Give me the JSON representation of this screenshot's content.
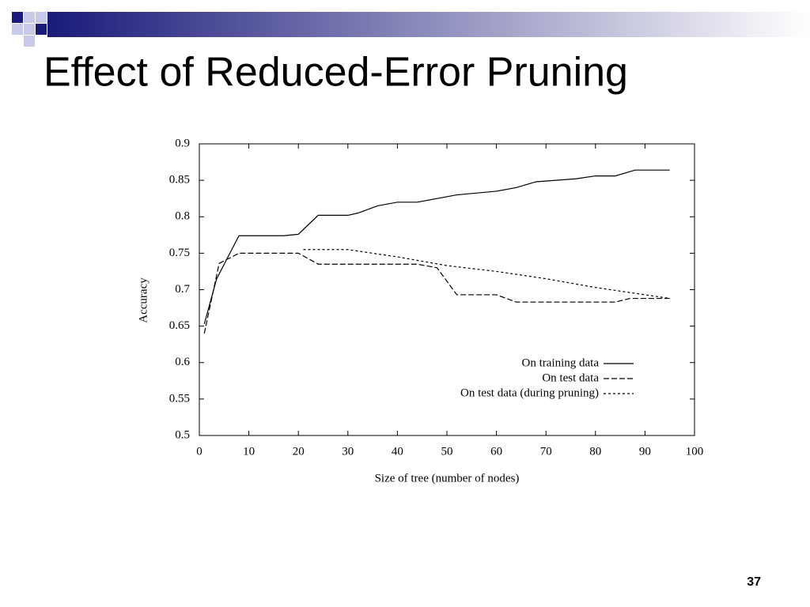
{
  "slide": {
    "title": "Effect of Reduced-Error Pruning",
    "page_number": 37
  },
  "chart_data": {
    "type": "line",
    "x_label": "Size of tree (number of nodes)",
    "y_label": "Accuracy",
    "xlim": [
      0,
      100
    ],
    "xticks": [
      0,
      10,
      20,
      30,
      40,
      50,
      60,
      70,
      80,
      90,
      100
    ],
    "ylim": [
      0.5,
      0.9
    ],
    "yticks": [
      0.5,
      0.55,
      0.6,
      0.65,
      0.7,
      0.75,
      0.8,
      0.85,
      0.9
    ],
    "legend": "lower-right",
    "series": [
      {
        "name": "On training data",
        "color": "#000000",
        "line_style": "solid",
        "x": [
          1,
          3.5,
          8,
          17,
          20,
          24,
          30,
          32,
          36,
          40,
          44,
          52,
          60,
          64,
          68,
          76,
          80,
          84,
          88,
          95
        ],
        "values": [
          0.653,
          0.715,
          0.774,
          0.774,
          0.776,
          0.802,
          0.802,
          0.805,
          0.815,
          0.82,
          0.82,
          0.83,
          0.835,
          0.84,
          0.848,
          0.852,
          0.856,
          0.856,
          0.864,
          0.864
        ]
      },
      {
        "name": "On test data",
        "color": "#000000",
        "line_style": "dashed",
        "x": [
          1,
          4,
          8,
          20,
          24,
          44,
          48,
          52,
          60,
          64,
          84,
          87,
          95
        ],
        "values": [
          0.64,
          0.736,
          0.75,
          0.75,
          0.735,
          0.735,
          0.73,
          0.693,
          0.693,
          0.683,
          0.683,
          0.688,
          0.688
        ]
      },
      {
        "name": "On test data (during pruning)",
        "color": "#000000",
        "line_style": "dotted",
        "x": [
          21,
          30,
          40,
          50,
          60,
          70,
          80,
          95
        ],
        "values": [
          0.755,
          0.755,
          0.745,
          0.733,
          0.725,
          0.715,
          0.703,
          0.688
        ]
      }
    ]
  }
}
